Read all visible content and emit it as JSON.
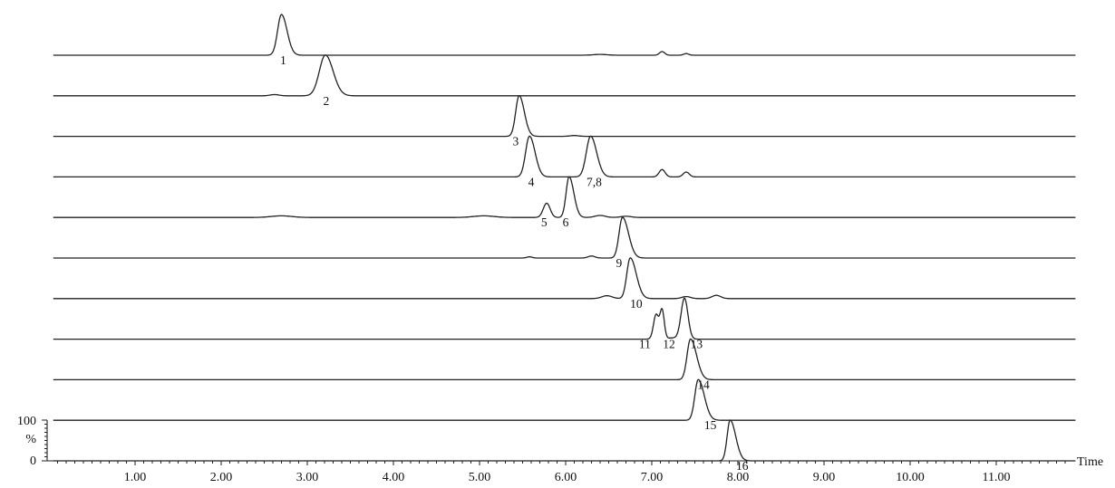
{
  "chart_data": {
    "type": "line",
    "title": "",
    "xlabel": "Time",
    "ylabel": "%",
    "xlim": [
      0,
      12
    ],
    "ylim": [
      0,
      100
    ],
    "y_ticks": [
      "100",
      "%",
      "0"
    ],
    "x_ticks": [
      {
        "value": 1,
        "label": "1.00"
      },
      {
        "value": 2,
        "label": "2.00"
      },
      {
        "value": 3,
        "label": "3.00"
      },
      {
        "value": 4,
        "label": "4.00"
      },
      {
        "value": 5,
        "label": "5.00"
      },
      {
        "value": 6,
        "label": "6.00"
      },
      {
        "value": 7,
        "label": "7.00"
      },
      {
        "value": 8,
        "label": "8.00"
      },
      {
        "value": 9,
        "label": "9.00"
      },
      {
        "value": 10,
        "label": "10.00"
      },
      {
        "value": 11,
        "label": "11.00"
      }
    ],
    "grid": false,
    "legend": "none",
    "series": [
      {
        "peaks": [
          {
            "rt": 2.7,
            "h": 100,
            "w": 0.045,
            "tail": 0.02
          },
          {
            "rt": 7.12,
            "h": 9,
            "w": 0.03
          },
          {
            "rt": 7.4,
            "h": 4,
            "w": 0.03
          },
          {
            "rt": 6.4,
            "h": 2,
            "w": 0.08
          }
        ],
        "range": [
          0.05,
          11.92
        ],
        "labels": [
          {
            "text": "1",
            "rt": 2.72
          }
        ]
      },
      {
        "peaks": [
          {
            "rt": 3.21,
            "h": 100,
            "w": 0.07,
            "tail": 0.02
          },
          {
            "rt": 2.62,
            "h": 3,
            "w": 0.05
          }
        ],
        "range": [
          0.05,
          11.92
        ],
        "labels": [
          {
            "text": "2",
            "rt": 3.22
          }
        ]
      },
      {
        "peaks": [
          {
            "rt": 5.46,
            "h": 100,
            "w": 0.04,
            "tail": 0.02
          },
          {
            "rt": 6.1,
            "h": 2,
            "w": 0.05
          }
        ],
        "range": [
          0.05,
          11.92
        ],
        "labels": [
          {
            "text": "3",
            "rt": 5.42
          }
        ]
      },
      {
        "peaks": [
          {
            "rt": 5.58,
            "h": 100,
            "w": 0.045,
            "tail": 0.02
          },
          {
            "rt": 6.29,
            "h": 100,
            "w": 0.05,
            "tail": 0.02
          },
          {
            "rt": 7.12,
            "h": 18,
            "w": 0.035
          },
          {
            "rt": 7.4,
            "h": 12,
            "w": 0.035
          }
        ],
        "range": [
          0.05,
          11.92
        ],
        "labels": [
          {
            "text": "4",
            "rt": 5.6
          },
          {
            "text": "7,8",
            "rt": 6.33
          }
        ]
      },
      {
        "peaks": [
          {
            "rt": 6.04,
            "h": 100,
            "w": 0.035,
            "tail": 0.02
          },
          {
            "rt": 5.78,
            "h": 35,
            "w": 0.04
          },
          {
            "rt": 2.7,
            "h": 4,
            "w": 0.12
          },
          {
            "rt": 5.05,
            "h": 4,
            "w": 0.12
          },
          {
            "rt": 6.4,
            "h": 5,
            "w": 0.06
          },
          {
            "rt": 6.7,
            "h": 3,
            "w": 0.06
          }
        ],
        "range": [
          0.05,
          11.92
        ],
        "labels": [
          {
            "text": "5",
            "rt": 5.75
          },
          {
            "text": "6",
            "rt": 6.0
          }
        ]
      },
      {
        "peaks": [
          {
            "rt": 6.66,
            "h": 100,
            "w": 0.04,
            "tail": 0.03
          },
          {
            "rt": 5.58,
            "h": 3,
            "w": 0.03
          },
          {
            "rt": 6.3,
            "h": 5,
            "w": 0.04
          }
        ],
        "range": [
          0.05,
          11.92
        ],
        "labels": [
          {
            "text": "9",
            "rt": 6.62
          }
        ]
      },
      {
        "peaks": [
          {
            "rt": 6.75,
            "h": 100,
            "w": 0.04,
            "tail": 0.03
          },
          {
            "rt": 6.48,
            "h": 7,
            "w": 0.06
          },
          {
            "rt": 7.4,
            "h": 5,
            "w": 0.05
          },
          {
            "rt": 7.75,
            "h": 8,
            "w": 0.05
          }
        ],
        "range": [
          0.05,
          11.92
        ],
        "labels": [
          {
            "text": "10",
            "rt": 6.82
          }
        ]
      },
      {
        "peaks": [
          {
            "rt": 7.05,
            "h": 60,
            "w": 0.03
          },
          {
            "rt": 7.12,
            "h": 70,
            "w": 0.025
          },
          {
            "rt": 7.38,
            "h": 100,
            "w": 0.04
          },
          {
            "rt": 7.25,
            "h": 3,
            "w": 0.08
          }
        ],
        "range": [
          0.05,
          11.92
        ],
        "labels": [
          {
            "text": "11",
            "rt": 6.92
          },
          {
            "text": "12",
            "rt": 7.2
          },
          {
            "text": "13",
            "rt": 7.52
          }
        ]
      },
      {
        "peaks": [
          {
            "rt": 7.45,
            "h": 100,
            "w": 0.04,
            "tail": 0.03
          }
        ],
        "range": [
          0.05,
          11.92
        ],
        "labels": [
          {
            "text": "14",
            "rt": 7.6
          }
        ]
      },
      {
        "peaks": [
          {
            "rt": 7.54,
            "h": 100,
            "w": 0.04,
            "tail": 0.03
          }
        ],
        "range": [
          0.05,
          11.92
        ],
        "labels": [
          {
            "text": "15",
            "rt": 7.68
          }
        ]
      },
      {
        "peaks": [
          {
            "rt": 7.91,
            "h": 100,
            "w": 0.035,
            "tail": 0.03
          }
        ],
        "range": [
          0.05,
          11.92
        ],
        "labels": [
          {
            "text": "16",
            "rt": 8.05
          }
        ]
      }
    ]
  }
}
